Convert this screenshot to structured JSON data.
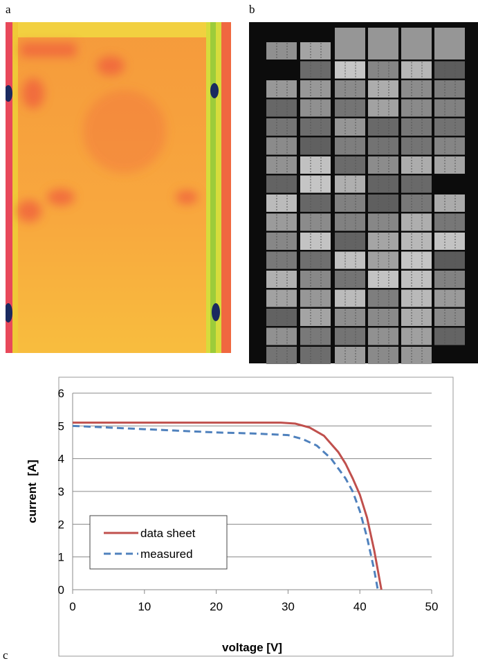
{
  "panels": {
    "a": "a",
    "b": "b",
    "c": "c"
  },
  "chart_data": {
    "type": "line",
    "x_label": "voltage [V]",
    "y_label": "current  [A]",
    "xlim": [
      0,
      50
    ],
    "xticks": [
      0,
      10,
      20,
      30,
      40,
      50
    ],
    "ylim": [
      0,
      6
    ],
    "yticks": [
      0,
      1,
      2,
      3,
      4,
      5,
      6
    ],
    "grid": true,
    "legend": "lower left",
    "series": [
      {
        "name": "data sheet",
        "color": "#c0504d",
        "line_style": "solid",
        "x": [
          0,
          10,
          20,
          29,
          31,
          33,
          35,
          37,
          38,
          39,
          40,
          41,
          42,
          43
        ],
        "values": [
          5.1,
          5.1,
          5.1,
          5.1,
          5.07,
          4.95,
          4.7,
          4.2,
          3.85,
          3.4,
          2.9,
          2.2,
          1.2,
          0
        ]
      },
      {
        "name": "measured",
        "color": "#4f81bd",
        "line_style": "dashed",
        "x": [
          0,
          5,
          10,
          15,
          20,
          25,
          30,
          32,
          34,
          36,
          38,
          39,
          40,
          41,
          42,
          42.5
        ],
        "values": [
          5.0,
          4.95,
          4.9,
          4.85,
          4.8,
          4.77,
          4.72,
          4.6,
          4.4,
          4.0,
          3.4,
          3.0,
          2.4,
          1.6,
          0.6,
          0
        ]
      }
    ]
  }
}
